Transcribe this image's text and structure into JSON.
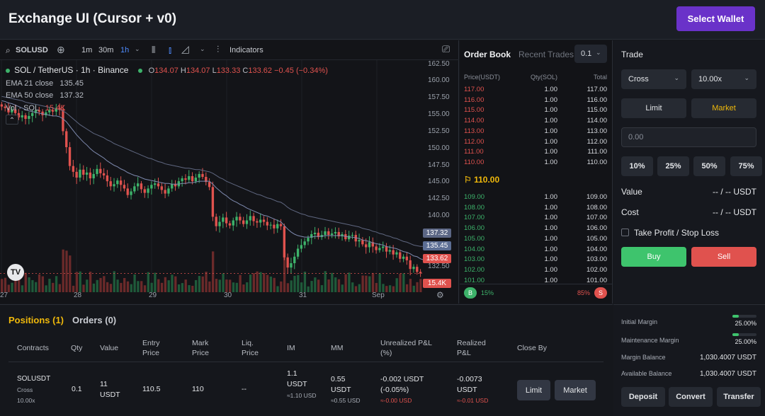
{
  "app": {
    "title": "Exchange UI (Cursor + v0)",
    "select_wallet": "Select Wallet"
  },
  "chart": {
    "symbol": "SOLUSD",
    "intervals": [
      "1m",
      "30m",
      "1h"
    ],
    "active_interval": "1h",
    "indicators_label": "Indicators",
    "pair_title": "SOL / TetherUS · 1h · Binance",
    "ohlc": {
      "o_label": "O",
      "o": "134.07",
      "h_label": "H",
      "h": "134.07",
      "l_label": "L",
      "l": "133.33",
      "c_label": "C",
      "c": "133.62",
      "change": "−0.45 (−0.34%)"
    },
    "ema21": {
      "label": "EMA 21 close",
      "value": "135.45"
    },
    "ema50": {
      "label": "EMA 50 close",
      "value": "137.32"
    },
    "vol": {
      "label": "Vol · SOL",
      "value": "15.4K"
    },
    "collapse_glyph": "⌃",
    "price_ticks": [
      "162.50",
      "160.00",
      "157.50",
      "155.00",
      "152.50",
      "150.00",
      "147.50",
      "145.00",
      "142.50",
      "140.00"
    ],
    "lower_ticks": [
      "132.50"
    ],
    "tags": {
      "ema50": "137.32",
      "ema21": "135.45",
      "last": "133.62",
      "volume": "15.4K"
    },
    "time_labels": [
      "27",
      "28",
      "29",
      "30",
      "31",
      "Sep"
    ],
    "colors": {
      "up": "#3db26a",
      "down": "#e0524e",
      "ema21": "#7f8bb0",
      "ema50": "#5f6780"
    }
  },
  "chart_data": {
    "type": "candlestick",
    "title": "SOL / TetherUS · 1h · Binance",
    "x_labels": [
      "27",
      "28",
      "29",
      "30",
      "31",
      "Sep"
    ],
    "ylim": [
      131,
      163
    ],
    "close": [
      156.6,
      156.4,
      155.8,
      156.2,
      155.7,
      155.1,
      155.4,
      154.9,
      155.3,
      155.7,
      156.1,
      155.9,
      155.4,
      155.8,
      156.1,
      155.9,
      156.4,
      156.2,
      153.2,
      151.0,
      148.4,
      147.6,
      146.8,
      147.9,
      147.2,
      147.5,
      146.7,
      147.3,
      148.0,
      147.4,
      147.1,
      146.3,
      145.6,
      145.9,
      146.4,
      145.8,
      145.3,
      144.4,
      144.9,
      145.6,
      146.0,
      145.2,
      144.7,
      145.3,
      145.8,
      146.0,
      145.6,
      145.1,
      144.6,
      145.3,
      145.9,
      145.6,
      146.3,
      146.7,
      146.5,
      147.0,
      146.3,
      146.8,
      147.3,
      146.9,
      146.2,
      145.5,
      141.4,
      140.1,
      140.7,
      141.3,
      140.5,
      140.2,
      140.9,
      141.4,
      140.9,
      140.4,
      140.9,
      141.5,
      140.8,
      140.6,
      141.0,
      140.7,
      140.2,
      140.3,
      139.8,
      140.4,
      140.1,
      135.8,
      134.4,
      135.0,
      135.9,
      137.0,
      137.5,
      138.0,
      138.5,
      139.0,
      139.2,
      138.6,
      138.9,
      139.4,
      138.9,
      139.1,
      139.3,
      138.7,
      139.0,
      138.3,
      138.8,
      138.9,
      138.0,
      138.2,
      137.6,
      137.2,
      137.9,
      137.3,
      136.8,
      137.1,
      137.3,
      136.6,
      136.8,
      136.2,
      136.5,
      135.6,
      135.9,
      135.4,
      134.2,
      134.5,
      133.8,
      133.6
    ],
    "ema21": [
      157.4,
      157.3,
      157.1,
      157.0,
      156.8,
      156.6,
      156.4,
      156.2,
      156.0,
      155.9,
      155.8,
      155.7,
      155.6,
      155.5,
      155.4,
      155.3,
      155.3,
      155.2,
      154.9,
      154.5,
      153.9,
      153.3,
      152.7,
      152.2,
      151.7,
      151.3,
      150.8,
      150.4,
      150.1,
      149.8,
      149.5,
      149.1,
      148.8,
      148.5,
      148.3,
      148.0,
      147.8,
      147.5,
      147.3,
      147.1,
      147.0,
      146.8,
      146.6,
      146.5,
      146.4,
      146.3,
      146.2,
      146.1,
      146.0,
      146.0,
      145.9,
      145.9,
      145.9,
      146.0,
      146.0,
      146.1,
      146.1,
      146.2,
      146.3,
      146.3,
      146.3,
      146.3,
      145.9,
      145.4,
      145.0,
      144.6,
      144.3,
      143.9,
      143.6,
      143.4,
      143.1,
      142.9,
      142.6,
      142.4,
      142.2,
      142.0,
      141.8,
      141.6,
      141.5,
      141.3,
      141.1,
      140.9,
      140.7,
      140.2,
      139.7,
      139.3,
      139.0,
      138.8,
      138.7,
      138.6,
      138.6,
      138.6,
      138.7,
      138.7,
      138.7,
      138.8,
      138.8,
      138.8,
      138.8,
      138.8,
      138.8,
      138.7,
      138.6,
      138.6,
      138.5,
      138.4,
      138.2,
      138.1,
      138.0,
      137.8,
      137.7,
      137.6,
      137.5,
      137.3,
      137.2,
      137.1,
      137.0,
      136.8,
      136.6,
      136.5,
      136.3,
      136.0,
      135.9,
      135.6,
      135.45
    ],
    "ema50": [
      158.0,
      157.9,
      157.8,
      157.7,
      157.6,
      157.5,
      157.4,
      157.2,
      157.1,
      157.0,
      156.9,
      156.8,
      156.7,
      156.6,
      156.5,
      156.4,
      156.3,
      156.2,
      156.0,
      155.7,
      155.3,
      154.9,
      154.5,
      154.1,
      153.8,
      153.5,
      153.2,
      152.9,
      152.7,
      152.5,
      152.3,
      152.0,
      151.8,
      151.5,
      151.3,
      151.1,
      150.9,
      150.7,
      150.5,
      150.3,
      150.1,
      149.9,
      149.7,
      149.5,
      149.4,
      149.2,
      149.0,
      148.9,
      148.7,
      148.6,
      148.5,
      148.4,
      148.3,
      148.2,
      148.1,
      148.1,
      148.0,
      147.9,
      147.9,
      147.8,
      147.7,
      147.6,
      147.4,
      147.1,
      146.8,
      146.6,
      146.3,
      146.1,
      145.9,
      145.7,
      145.5,
      145.3,
      145.1,
      144.9,
      144.7,
      144.5,
      144.4,
      144.2,
      144.0,
      143.9,
      143.7,
      143.5,
      143.4,
      143.1,
      142.7,
      142.4,
      142.2,
      142.0,
      141.8,
      141.7,
      141.5,
      141.4,
      141.3,
      141.2,
      141.1,
      141.0,
      140.9,
      140.8,
      140.7,
      140.6,
      140.5,
      140.4,
      140.3,
      140.2,
      140.1,
      140.0,
      139.8,
      139.7,
      139.6,
      139.4,
      139.3,
      139.1,
      139.0,
      138.8,
      138.7,
      138.5,
      138.4,
      138.2,
      138.0,
      137.9,
      137.7,
      137.5,
      137.4,
      137.32,
      137.32
    ]
  },
  "orderbook": {
    "tab_active": "Order Book",
    "tab_inactive": "Recent Trades",
    "step": "0.1",
    "headers": [
      "Price(USDT)",
      "Qty(SOL)",
      "Total"
    ],
    "asks": [
      [
        "117.00",
        "1.00",
        "117.00"
      ],
      [
        "116.00",
        "1.00",
        "116.00"
      ],
      [
        "115.00",
        "1.00",
        "115.00"
      ],
      [
        "114.00",
        "1.00",
        "114.00"
      ],
      [
        "113.00",
        "1.00",
        "113.00"
      ],
      [
        "112.00",
        "1.00",
        "112.00"
      ],
      [
        "111.00",
        "1.00",
        "111.00"
      ],
      [
        "110.00",
        "1.00",
        "110.00"
      ]
    ],
    "mid": "110.00",
    "bids": [
      [
        "109.00",
        "1.00",
        "109.00"
      ],
      [
        "108.00",
        "1.00",
        "108.00"
      ],
      [
        "107.00",
        "1.00",
        "107.00"
      ],
      [
        "106.00",
        "1.00",
        "106.00"
      ],
      [
        "105.00",
        "1.00",
        "105.00"
      ],
      [
        "104.00",
        "1.00",
        "104.00"
      ],
      [
        "103.00",
        "1.00",
        "103.00"
      ],
      [
        "102.00",
        "1.00",
        "102.00"
      ],
      [
        "101.00",
        "1.00",
        "101.00"
      ]
    ],
    "buy_badge": "B",
    "buy_pct": "15%",
    "sell_pct": "85%",
    "sell_badge": "S",
    "buy_ratio": 0.15
  },
  "trade": {
    "title": "Trade",
    "margin_mode": "Cross",
    "leverage": "10.00x",
    "order_types": [
      "Limit",
      "Market"
    ],
    "price_placeholder": "0.00",
    "percents": [
      "10%",
      "25%",
      "50%",
      "75%"
    ],
    "value_label": "Value",
    "value": "-- / -- USDT",
    "cost_label": "Cost",
    "cost": "-- / -- USDT",
    "tpsl_label": "Take Profit / Stop Loss",
    "buy": "Buy",
    "sell": "Sell"
  },
  "margin": {
    "rows": [
      {
        "label": "Initial Margin",
        "value": "25.00%",
        "fill": 0.25
      },
      {
        "label": "Maintenance Margin",
        "value": "25.00%",
        "fill": 0.25
      },
      {
        "label": "Margin Balance",
        "value": "1,030.4007 USDT"
      },
      {
        "label": "Available Balance",
        "value": "1,030.4007 USDT"
      }
    ],
    "buttons": [
      "Deposit",
      "Convert",
      "Transfer"
    ]
  },
  "positions": {
    "tab_positions": "Positions (1)",
    "tab_orders": "Orders (0)",
    "headers": {
      "contracts": "Contracts",
      "qty": "Qty",
      "value": "Value",
      "entry": "Entry Price",
      "mark": "Mark Price",
      "liq": "Liq. Price",
      "im": "IM",
      "mm": "MM",
      "upnl": "Unrealized P&L (%)",
      "rpnl": "Realized P&L",
      "close": "Close By"
    },
    "row": {
      "symbol": "SOLUSDT",
      "mode": "Cross",
      "leverage": "10.00x",
      "qty": "0.1",
      "value": "11 USDT",
      "entry": "110.5",
      "mark": "110",
      "liq": "--",
      "im": "1.1 USDT",
      "im_sub": "≈1.10 USD",
      "mm": "0.55 USDT",
      "mm_sub": "≈0.55 USD",
      "upnl": "-0.002 USDT (-0.05%)",
      "upnl_sub": "≈-0.00 USD",
      "rpnl": "-0.0073 USDT",
      "rpnl_sub": "≈-0.01 USD",
      "close_limit": "Limit",
      "close_market": "Market"
    }
  }
}
